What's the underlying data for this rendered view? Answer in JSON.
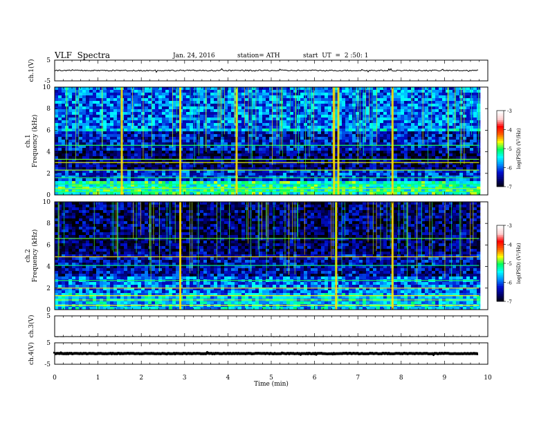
{
  "header": {
    "title": "VLF  Spectra",
    "date": "Jan. 24, 2016",
    "station": "station= ATH",
    "start": "start  UT  =  2 :50: 1"
  },
  "colors": {
    "axes": "#000000",
    "colormap": [
      "#000000",
      "#000070",
      "#0010d0",
      "#0090ff",
      "#00ffff",
      "#00ff60",
      "#ffff00",
      "#ff6000",
      "#ff0000",
      "#ffd0d0",
      "#ffffff"
    ]
  },
  "chart_data": [
    {
      "type": "line",
      "name": "ch1-waveform",
      "ylabel": "ch.1(V)",
      "ylim": [
        -5,
        5
      ],
      "yticks": [
        "5",
        "-5"
      ],
      "x_range_min": [
        0,
        9.8
      ],
      "level_v": 0.0,
      "amplitude_v": 0.3
    },
    {
      "type": "heatmap",
      "name": "ch1-spectrogram",
      "ylabel": "ch.1\nFrequency (kHz)",
      "ylim": [
        0,
        10
      ],
      "yticks": [
        "0",
        "2",
        "4",
        "6",
        "8",
        "10"
      ],
      "x_range_min": [
        0,
        9.8
      ],
      "color_range_logpsd": [
        -7,
        -3
      ],
      "band_levels": [
        {
          "f_from": 0.0,
          "f_to": 1.2,
          "level": -5.2
        },
        {
          "f_from": 1.2,
          "f_to": 2.2,
          "level": -6.1
        },
        {
          "f_from": 2.2,
          "f_to": 4.0,
          "level": -6.6
        },
        {
          "f_from": 4.0,
          "f_to": 5.8,
          "level": -6.3
        },
        {
          "f_from": 5.8,
          "f_to": 6.1,
          "level": -5.6
        },
        {
          "f_from": 6.1,
          "f_to": 10.0,
          "level": -5.9
        }
      ],
      "line_frequencies_khz": [
        0.3,
        0.6,
        1.0,
        1.6,
        2.3,
        3.0,
        3.3,
        4.6
      ],
      "burst_times_min": [
        1.55,
        2.9,
        4.2,
        6.45,
        6.55,
        7.8
      ]
    },
    {
      "type": "heatmap",
      "name": "ch2-spectrogram",
      "ylabel": "ch.2\nFrequency (kHz)",
      "ylim": [
        0,
        10
      ],
      "yticks": [
        "0",
        "2",
        "4",
        "6",
        "8",
        "10"
      ],
      "x_range_min": [
        0,
        9.8
      ],
      "color_range_logpsd": [
        -7,
        -3
      ],
      "band_levels": [
        {
          "f_from": 0.0,
          "f_to": 1.6,
          "level": -5.6
        },
        {
          "f_from": 1.6,
          "f_to": 3.2,
          "level": -5.9
        },
        {
          "f_from": 3.2,
          "f_to": 5.0,
          "level": -6.4
        },
        {
          "f_from": 5.0,
          "f_to": 10.0,
          "level": -6.6
        }
      ],
      "line_frequencies_khz": [
        0.4,
        0.9,
        1.3,
        2.0,
        2.7,
        4.1,
        4.9,
        6.6
      ],
      "burst_times_min": [
        2.9,
        6.5,
        7.8
      ]
    },
    {
      "type": "line",
      "name": "ch3-waveform",
      "ylabel": "ch.3(V)",
      "ylim": [
        -5,
        5
      ],
      "yticks": [
        "5"
      ],
      "x_range_min": [
        0,
        9.8
      ],
      "level_v": -5.0,
      "amplitude_v": 0.05
    },
    {
      "type": "line",
      "name": "ch4-waveform",
      "ylabel": "ch.4(V)",
      "ylim": [
        -5,
        5
      ],
      "yticks": [
        "5",
        "-5"
      ],
      "x_range_min": [
        0,
        9.8
      ],
      "xlabel": "Time  (min)",
      "xlim": [
        0,
        10
      ],
      "xticks": [
        "0",
        "1",
        "2",
        "3",
        "4",
        "5",
        "6",
        "7",
        "8",
        "9",
        "10"
      ],
      "level_v": 0.0,
      "amplitude_v": 0.15
    },
    {
      "type": "heatmap",
      "name": "colorbars",
      "label": "log(PSD) (V²/Hz)",
      "ticks": [
        "-3",
        "-4",
        "-5",
        "-6",
        "-7"
      ],
      "range": [
        -7,
        -3
      ]
    }
  ]
}
